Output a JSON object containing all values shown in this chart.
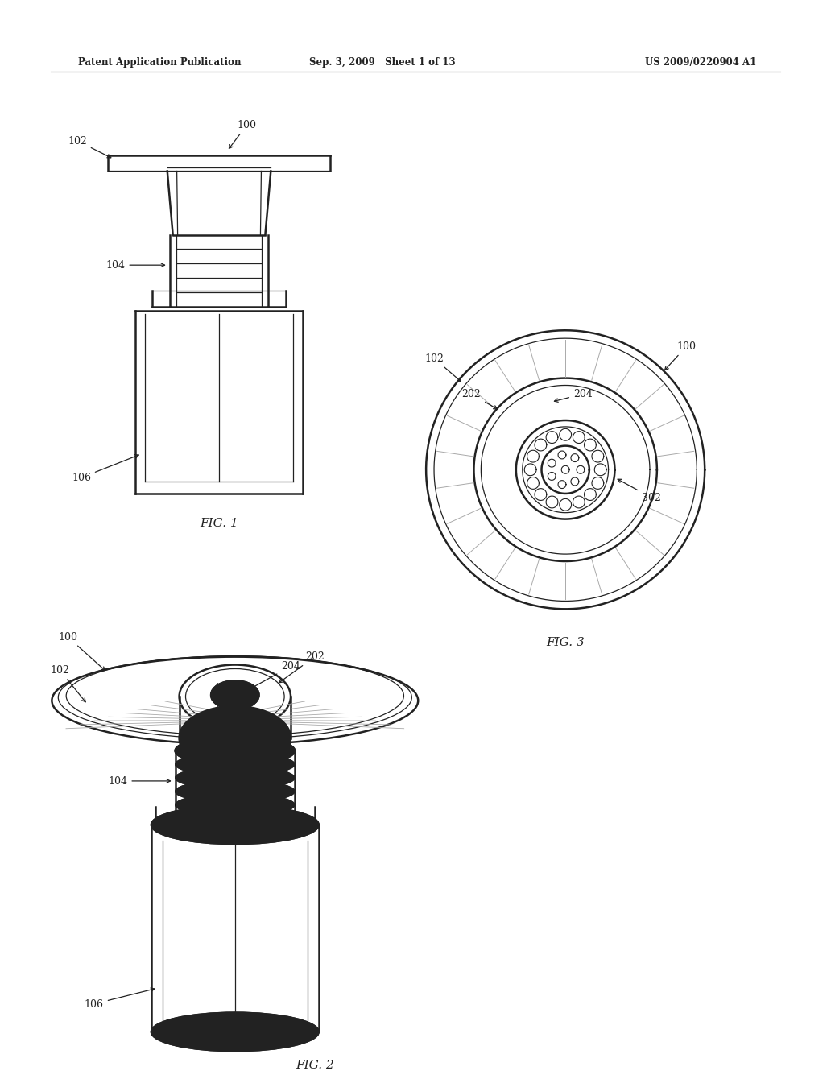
{
  "background_color": "#ffffff",
  "line_color": "#222222",
  "light_line_color": "#aaaaaa",
  "header": {
    "left": "Patent Application Publication",
    "center": "Sep. 3, 2009   Sheet 1 of 13",
    "right": "US 2009/0220904 A1"
  }
}
